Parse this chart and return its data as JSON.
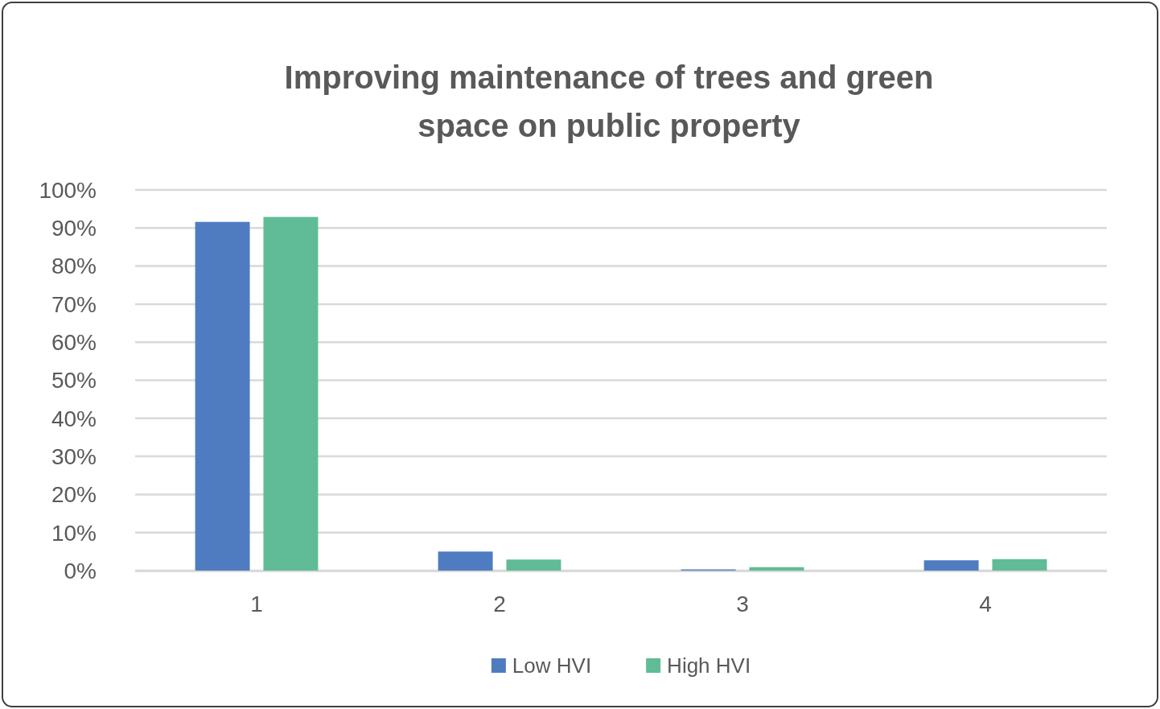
{
  "chart_data": {
    "type": "bar",
    "title": "Improving maintenance of trees and green space on public property",
    "categories": [
      "1",
      "2",
      "3",
      "4"
    ],
    "series": [
      {
        "name": "Low HVI",
        "color": "#4f7cc1",
        "values": [
          91.6,
          5.0,
          0.3,
          2.7
        ]
      },
      {
        "name": "High HVI",
        "color": "#60bc96",
        "values": [
          92.9,
          2.9,
          0.9,
          3.0
        ]
      }
    ],
    "ylim": [
      0,
      100
    ],
    "yticks": [
      {
        "value": 0,
        "label": "0%"
      },
      {
        "value": 10,
        "label": "10%"
      },
      {
        "value": 20,
        "label": "20%"
      },
      {
        "value": 30,
        "label": "30%"
      },
      {
        "value": 40,
        "label": "40%"
      },
      {
        "value": 50,
        "label": "50%"
      },
      {
        "value": 60,
        "label": "60%"
      },
      {
        "value": 70,
        "label": "70%"
      },
      {
        "value": 80,
        "label": "80%"
      },
      {
        "value": 90,
        "label": "90%"
      },
      {
        "value": 100,
        "label": "100%"
      }
    ],
    "grid": "y",
    "legend": "bottom"
  }
}
